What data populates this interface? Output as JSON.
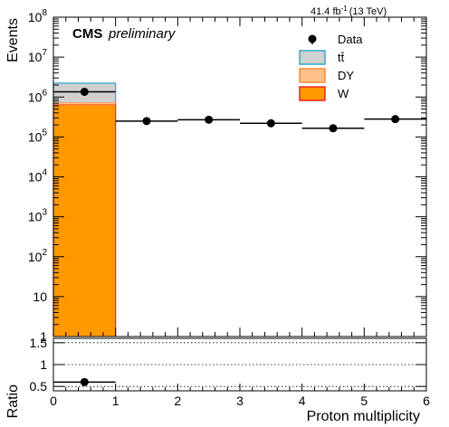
{
  "header": {
    "lumi": "41.4 fb",
    "lumi_sup": "-1",
    "energy": "(13 TeV)",
    "cms": "CMS",
    "preliminary": "preliminary"
  },
  "legend": {
    "data": "Data",
    "ttbar": "tt̄",
    "dy": "DY",
    "w": "W"
  },
  "colors": {
    "ttbar_fill": "#d0d0d0",
    "ttbar_line": "#33aacc",
    "dy_fill": "#ffc08a",
    "dy_line": "#ff8833",
    "w_fill": "#ff9900",
    "w_line": "#ee2222",
    "data": "#000000"
  },
  "chart_data": [
    {
      "type": "bar",
      "stacked": true,
      "ylog": true,
      "xlabel": "Proton multiplicity",
      "ylabel": "Events",
      "xlim": [
        0,
        6
      ],
      "ylim": [
        1,
        100000000
      ],
      "x_ticks": [
        0,
        1,
        2,
        3,
        4,
        5,
        6
      ],
      "y_ticks": [
        {
          "value": 1,
          "label": "1"
        },
        {
          "value": 10,
          "label": "10"
        },
        {
          "value": 100,
          "base": "10",
          "exp": "2"
        },
        {
          "value": 1000,
          "base": "10",
          "exp": "3"
        },
        {
          "value": 10000,
          "base": "10",
          "exp": "4"
        },
        {
          "value": 100000,
          "base": "10",
          "exp": "5"
        },
        {
          "value": 1000000,
          "base": "10",
          "exp": "6"
        },
        {
          "value": 10000000,
          "base": "10",
          "exp": "7"
        },
        {
          "value": 100000000,
          "base": "10",
          "exp": "8"
        }
      ],
      "bins": [
        [
          0,
          1
        ],
        [
          1,
          2
        ],
        [
          2,
          3
        ],
        [
          3,
          4
        ],
        [
          4,
          5
        ],
        [
          5,
          6
        ]
      ],
      "series": [
        {
          "name": "W",
          "values": [
            650000,
            0,
            0,
            0,
            0,
            0
          ]
        },
        {
          "name": "DY",
          "values": [
            80000,
            0,
            0,
            0,
            0,
            0
          ]
        },
        {
          "name": "tt̄",
          "values": [
            1500000,
            0,
            0,
            0,
            0,
            0
          ]
        },
        {
          "name": "Data",
          "kind": "points",
          "x": [
            0.5,
            1.5,
            2.5,
            3.5,
            4.5,
            5.5
          ],
          "values": [
            1350000,
            250000,
            270000,
            220000,
            165000,
            280000
          ]
        }
      ]
    },
    {
      "type": "scatter",
      "ylabel": "Ratio",
      "xlim": [
        0,
        6
      ],
      "ylim": [
        0.4,
        1.6
      ],
      "y_ticks": [
        0.5,
        1,
        1.5
      ],
      "dotted_lines": [
        0.5,
        1,
        1.5
      ],
      "x": [
        0.5
      ],
      "values": [
        0.6
      ]
    }
  ]
}
